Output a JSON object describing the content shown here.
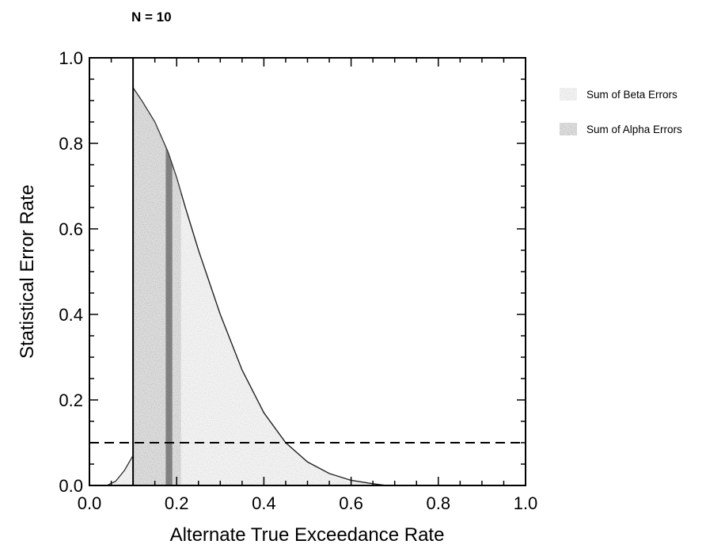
{
  "chart_data": {
    "type": "area",
    "title": "N = 10",
    "xlabel": "Alternate True Exceedance Rate",
    "ylabel": "Statistical Error Rate",
    "xlim": [
      0.0,
      1.0
    ],
    "ylim": [
      0.0,
      1.0
    ],
    "x_ticks": [
      "0.0",
      "0.2",
      "0.4",
      "0.6",
      "0.8",
      "1.0"
    ],
    "y_ticks": [
      "0.0",
      "0.2",
      "0.4",
      "0.6",
      "0.8",
      "1.0"
    ],
    "grid": false,
    "legend_position": "right",
    "reference_lines": {
      "vertical_x": 0.1,
      "horizontal_dashed_y": 0.1
    },
    "series": [
      {
        "name": "Sum of Beta Errors",
        "color": "#b4b4b4",
        "x": [
          0.1,
          0.12,
          0.15,
          0.18,
          0.2,
          0.22,
          0.25,
          0.3,
          0.35,
          0.4,
          0.45,
          0.5,
          0.55,
          0.6,
          0.65,
          0.68
        ],
        "y": [
          0.93,
          0.9,
          0.85,
          0.78,
          0.72,
          0.65,
          0.55,
          0.4,
          0.27,
          0.17,
          0.1,
          0.055,
          0.028,
          0.012,
          0.004,
          0.0
        ]
      },
      {
        "name": "Sum of Alpha Errors",
        "color": "#6e6e6e",
        "x": [
          0.04,
          0.06,
          0.08,
          0.1
        ],
        "y": [
          0.0,
          0.01,
          0.035,
          0.07
        ]
      }
    ]
  }
}
